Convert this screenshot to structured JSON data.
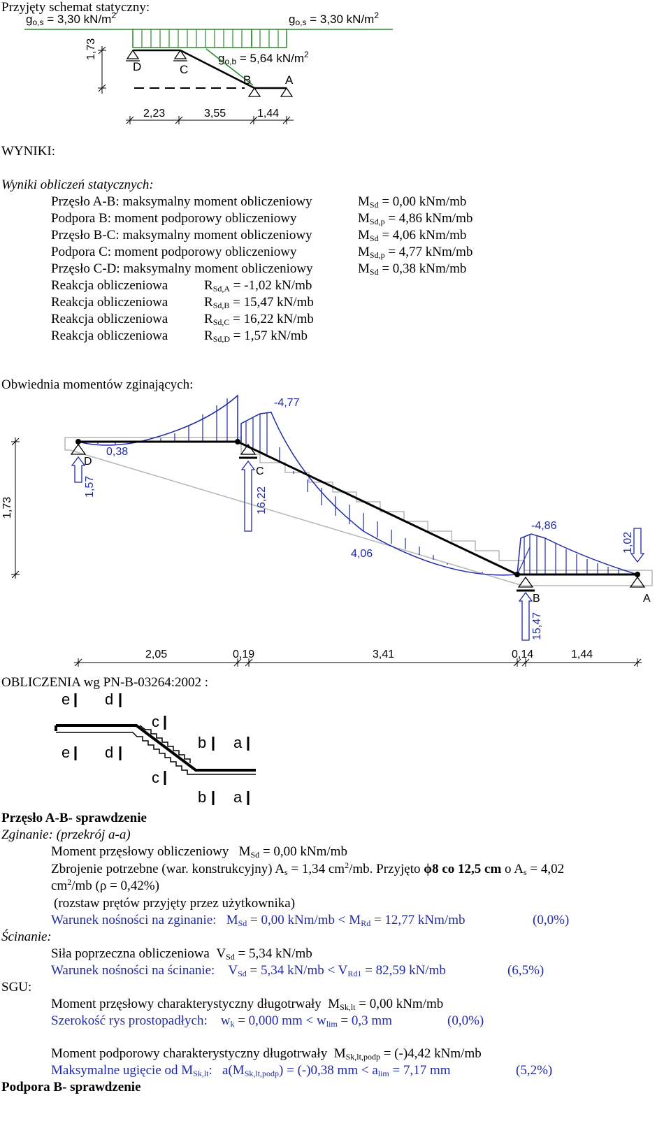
{
  "scheme": {
    "heading": "Przyjęty schemat statyczny:",
    "load_left": {
      "sym": "g",
      "sub": "o,s",
      "text": " = 3,30 kN/m",
      "sup": "2"
    },
    "load_right": {
      "sym": "g",
      "sub": "o,s",
      "text": " = 3,30 kN/m",
      "sup": "2"
    },
    "load_mid": {
      "sym": "g",
      "sub": "o,b",
      "text": " = 5,64 kN/m",
      "sup": "2"
    },
    "height": "1,73",
    "supports": [
      "D",
      "C",
      "B",
      "A"
    ],
    "dims": [
      "2,23",
      "3,55",
      "1,44"
    ]
  },
  "results": {
    "heading": "WYNIKI:",
    "subheading": "Wyniki obliczeń statycznych:",
    "rows": [
      {
        "label": "Przęsło A-B: maksymalny moment obliczeniowy",
        "sym": "M",
        "sub": "Sd",
        "value": " = 0,00 kNm/mb"
      },
      {
        "label": "Podpora B: moment podporowy obliczeniowy",
        "sym": "M",
        "sub": "Sd,p",
        "value": " = 4,86 kNm/mb"
      },
      {
        "label": "Przęsło B-C: maksymalny moment obliczeniowy",
        "sym": "M",
        "sub": "Sd",
        "value": " = 4,06 kNm/mb"
      },
      {
        "label": "Podpora C: moment podporowy obliczeniowy",
        "sym": "M",
        "sub": "Sd,p",
        "value": " = 4,77 kNm/mb"
      },
      {
        "label": "Przęsło C-D: maksymalny moment obliczeniowy",
        "sym": "M",
        "sub": "Sd",
        "value": " = 0,38 kNm/mb"
      }
    ],
    "reactions": [
      {
        "label": "Reakcja obliczeniowa",
        "sym": "R",
        "sub": "Sd,A",
        "value": " = -1,02 kN/mb"
      },
      {
        "label": "Reakcja obliczeniowa",
        "sym": "R",
        "sub": "Sd,B",
        "value": " = 15,47 kN/mb"
      },
      {
        "label": "Reakcja obliczeniowa",
        "sym": "R",
        "sub": "Sd,C",
        "value": " = 16,22 kN/mb"
      },
      {
        "label": "Reakcja obliczeniowa",
        "sym": "R",
        "sub": "Sd,D",
        "value": " = 1,57 kN/mb"
      }
    ]
  },
  "envelope": {
    "heading": "Obwiednia momentów zginających:",
    "height": "1,73",
    "labels": {
      "mC": "-4,77",
      "mCD": "0,38",
      "mBC": "4,06",
      "mB": "-4,86"
    },
    "supports": [
      "D",
      "C",
      "B",
      "A"
    ],
    "reactions": {
      "D": "1,57",
      "C": "16,22",
      "B": "15,47",
      "A": "1,02"
    },
    "dims": [
      "2,05",
      "0,19",
      "3,41",
      "0,14",
      "1,44"
    ]
  },
  "calc": {
    "heading": "OBLICZENIA wg PN-B-03264:2002 :",
    "sections": [
      "e",
      "d",
      "c",
      "b",
      "a"
    ],
    "title": "Przęsło A-B- sprawdzenie",
    "bending": "Zginanie: (przekrój a-a)",
    "moment": {
      "label": "Moment przęsłowy obliczeniowy",
      "sym": "M",
      "sub": "Sd",
      "value": " = 0,00 kNm/mb"
    },
    "rebar": {
      "a": "Zbrojenie potrzebne (war. konstrukcyjny) A",
      "a_sub": "s",
      "b": " = 1,34 cm",
      "b_sup": "2",
      "c": "/mb. Przyjęto ",
      "d": "ϕ8 co 12,5 cm",
      "e": " o A",
      "e_sub": "s",
      "f": " = 4,02",
      "g": "cm",
      "g_sup": "2",
      "h": "/mb   (ρ = 0,42%)"
    },
    "spacing_note": "(rozstaw prętów przyjęty przez użytkownika)",
    "cond_bend": {
      "label": "Warunek nośności na zginanie:",
      "s1": "M",
      "s1_sub": "Sd",
      "v1": " = 0,00 kNm/mb  <  ",
      "s2": "M",
      "s2_sub": "Rd",
      "v2": " = 12,77 kNm/mb",
      "pct": "(0,0%)"
    },
    "shear": "Ścinanie:",
    "shear_force": {
      "label": "Siła poprzeczna obliczeniowa",
      "sym": "V",
      "sub": "Sd",
      "value": " = 5,34 kN/mb"
    },
    "cond_shear": {
      "label": "Warunek nośności na ścinanie:",
      "s1": "V",
      "s1_sub": "Sd",
      "v1": " = 5,34 kN/mb  <  ",
      "s2": "V",
      "s2_sub": "Rd1",
      "v2": " = 82,59 kN/mb",
      "pct": "(6,5%)"
    },
    "sgu": "SGU:",
    "char_moment": {
      "label": "Moment przęsłowy charakterystyczny długotrwały",
      "sym": "M",
      "sub": "Sk,lt",
      "value": " = 0,00 kNm/mb"
    },
    "crack": {
      "label": "Szerokość rys prostopadłych:",
      "s1": "w",
      "s1_sub": "k",
      "v1": " = 0,000 mm  <  ",
      "s2": "w",
      "s2_sub": "lim",
      "v2": " = 0,3 mm",
      "pct": "(0,0%)"
    },
    "support_moment": {
      "label": "Moment podporowy charakterystyczny długotrwały",
      "sym": "M",
      "sub": "Sk,lt,podp",
      "value": " = (-)4,42 kNm/mb"
    },
    "deflection": {
      "label_a": "Maksymalne ugięcie od M",
      "label_sub": "Sk,lt",
      "label_b": ":",
      "s1": "a(M",
      "s1_sub": "Sk,lt,podp",
      "v1": ") = (-)0,38 mm  <  ",
      "s2": "a",
      "s2_sub": "lim",
      "v2": " = 7,17 mm",
      "pct": "(5,2%)"
    },
    "next_title": "Podpora B- sprawdzenie"
  }
}
